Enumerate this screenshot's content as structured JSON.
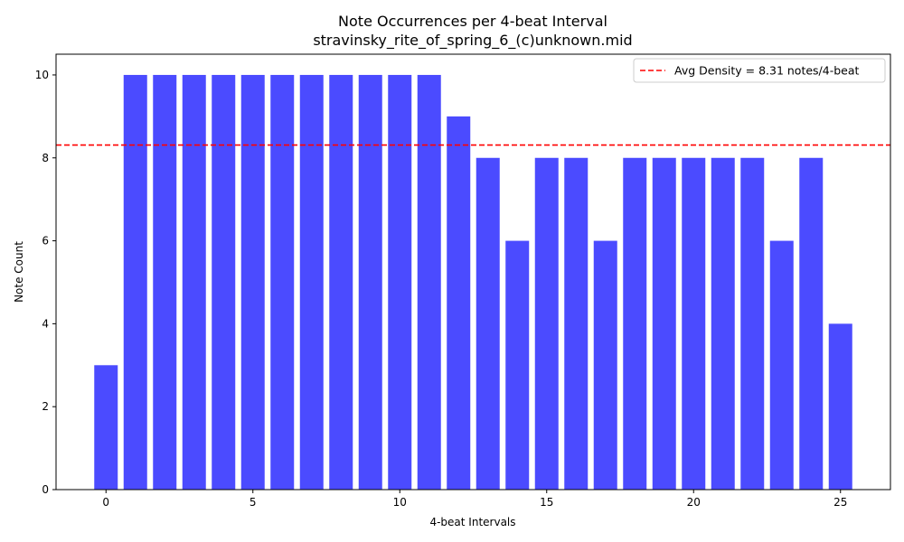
{
  "chart_data": {
    "type": "bar",
    "title": "Note Occurrences per 4-beat Interval",
    "subtitle": "stravinsky_rite_of_spring_6_(c)unknown.mid",
    "xlabel": "4-beat Intervals",
    "ylabel": "Note Count",
    "x": [
      0,
      1,
      2,
      3,
      4,
      5,
      6,
      7,
      8,
      9,
      10,
      11,
      12,
      13,
      14,
      15,
      16,
      17,
      18,
      19,
      20,
      21,
      22,
      23,
      24,
      25
    ],
    "values": [
      3,
      10,
      10,
      10,
      10,
      10,
      10,
      10,
      10,
      10,
      10,
      10,
      9,
      8,
      6,
      8,
      8,
      6,
      8,
      8,
      8,
      8,
      8,
      6,
      8,
      4
    ],
    "xlim": [
      -1.7,
      26.7
    ],
    "ylim": [
      0,
      10.5
    ],
    "xticks": [
      0,
      5,
      10,
      15,
      20,
      25
    ],
    "yticks": [
      0,
      2,
      4,
      6,
      8,
      10
    ],
    "bar_color": "#4b4bff",
    "reference_line": {
      "value": 8.31,
      "color": "#ff0000",
      "style": "dashed",
      "label": "Avg Density = 8.31 notes/4-beat"
    },
    "legend_position": "top-right",
    "grid": false
  }
}
